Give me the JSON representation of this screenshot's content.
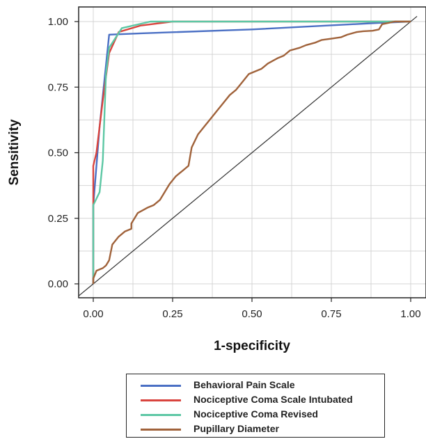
{
  "chart_data": {
    "type": "line",
    "xlabel": "1-specificity",
    "ylabel": "Sensitivity",
    "xlim": [
      0,
      1
    ],
    "ylim": [
      0,
      1
    ],
    "x_ticks": [
      "0.00",
      "0.25",
      "0.50",
      "0.75",
      "1.00"
    ],
    "y_ticks": [
      "0.00",
      "0.25",
      "0.50",
      "0.75",
      "1.00"
    ],
    "grid": true,
    "reference_line": [
      [
        0,
        0
      ],
      [
        1,
        1
      ]
    ],
    "legend_position": "bottom",
    "series": [
      {
        "name": "Behavioral Pain Scale",
        "color": "#4a6fc4",
        "points": [
          [
            0,
            0
          ],
          [
            0,
            0.3
          ],
          [
            0.02,
            0.6
          ],
          [
            0.05,
            0.95
          ],
          [
            0.15,
            0.955
          ],
          [
            0.5,
            0.97
          ],
          [
            0.9,
            0.995
          ],
          [
            1,
            1
          ]
        ]
      },
      {
        "name": "Nociceptive Coma Scale Intubated",
        "color": "#d9443e",
        "points": [
          [
            0,
            0
          ],
          [
            0,
            0.45
          ],
          [
            0.01,
            0.5
          ],
          [
            0.03,
            0.7
          ],
          [
            0.05,
            0.88
          ],
          [
            0.08,
            0.96
          ],
          [
            0.15,
            0.985
          ],
          [
            0.25,
            1
          ],
          [
            1,
            1
          ]
        ]
      },
      {
        "name": "Nociceptive Coma Revised",
        "color": "#5cc7a4",
        "points": [
          [
            0,
            0
          ],
          [
            0,
            0.3
          ],
          [
            0.02,
            0.35
          ],
          [
            0.03,
            0.47
          ],
          [
            0.04,
            0.8
          ],
          [
            0.05,
            0.9
          ],
          [
            0.09,
            0.975
          ],
          [
            0.18,
            1
          ],
          [
            0.91,
            1
          ],
          [
            1,
            1
          ]
        ]
      },
      {
        "name": "Pupillary Diameter",
        "color": "#a0623a",
        "points": [
          [
            0,
            0
          ],
          [
            0,
            0.02
          ],
          [
            0.01,
            0.05
          ],
          [
            0.03,
            0.06
          ],
          [
            0.04,
            0.07
          ],
          [
            0.05,
            0.09
          ],
          [
            0.06,
            0.15
          ],
          [
            0.08,
            0.18
          ],
          [
            0.1,
            0.2
          ],
          [
            0.12,
            0.21
          ],
          [
            0.12,
            0.23
          ],
          [
            0.14,
            0.27
          ],
          [
            0.17,
            0.29
          ],
          [
            0.19,
            0.3
          ],
          [
            0.21,
            0.32
          ],
          [
            0.22,
            0.34
          ],
          [
            0.24,
            0.38
          ],
          [
            0.26,
            0.41
          ],
          [
            0.28,
            0.43
          ],
          [
            0.29,
            0.44
          ],
          [
            0.3,
            0.45
          ],
          [
            0.31,
            0.52
          ],
          [
            0.33,
            0.57
          ],
          [
            0.35,
            0.6
          ],
          [
            0.37,
            0.63
          ],
          [
            0.39,
            0.66
          ],
          [
            0.41,
            0.69
          ],
          [
            0.43,
            0.72
          ],
          [
            0.45,
            0.74
          ],
          [
            0.47,
            0.77
          ],
          [
            0.49,
            0.8
          ],
          [
            0.51,
            0.81
          ],
          [
            0.53,
            0.82
          ],
          [
            0.55,
            0.84
          ],
          [
            0.58,
            0.86
          ],
          [
            0.6,
            0.87
          ],
          [
            0.62,
            0.89
          ],
          [
            0.65,
            0.9
          ],
          [
            0.67,
            0.91
          ],
          [
            0.7,
            0.92
          ],
          [
            0.72,
            0.93
          ],
          [
            0.75,
            0.935
          ],
          [
            0.78,
            0.94
          ],
          [
            0.8,
            0.95
          ],
          [
            0.83,
            0.96
          ],
          [
            0.85,
            0.963
          ],
          [
            0.88,
            0.965
          ],
          [
            0.9,
            0.97
          ],
          [
            0.91,
            0.99
          ],
          [
            0.95,
            1
          ],
          [
            1,
            1
          ]
        ]
      }
    ]
  }
}
